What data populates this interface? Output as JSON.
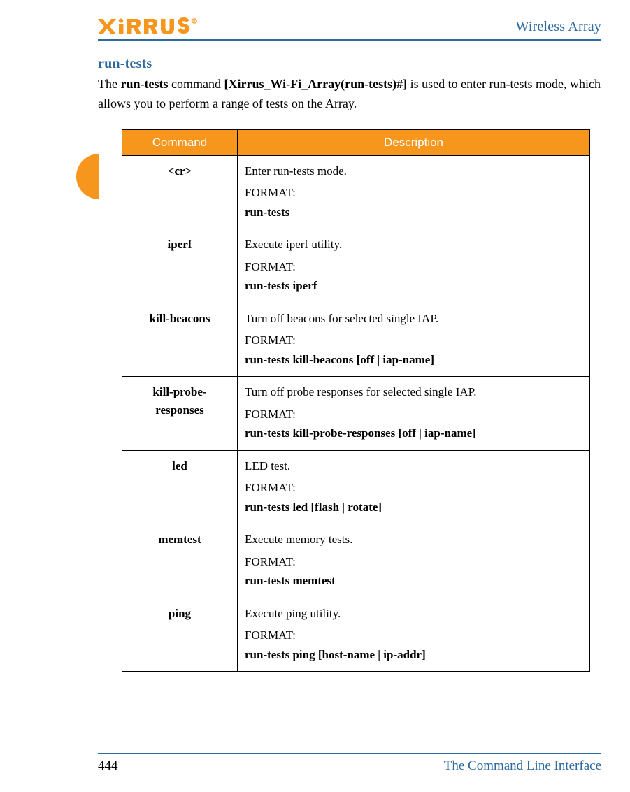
{
  "header": {
    "logo_text": "XIRRUS",
    "logo_color": "#f7961d",
    "right": "Wireless Array",
    "rule_color": "#2c6aa0"
  },
  "section": {
    "title": "run-tests",
    "title_color": "#2c6aa0"
  },
  "intro": {
    "pre": "The ",
    "cmd": "run-tests",
    "mid": " command ",
    "prompt": "[Xirrus_Wi-Fi_Array(run-tests)#]",
    "post": " is used to enter run-tests mode, which allows you to perform a range of tests on the Array."
  },
  "table": {
    "header_bg": "#f7961d",
    "header_fg": "#ffffff",
    "col_command": "Command",
    "col_description": "Description",
    "rows": [
      {
        "command": "<cr>",
        "summary": "Enter run-tests mode.",
        "format_label": "FORMAT:",
        "format": "run-tests"
      },
      {
        "command": "iperf",
        "summary": " Execute iperf utility.",
        "format_label": "FORMAT:",
        "format": "run-tests iperf"
      },
      {
        "command": "kill-beacons",
        "summary": "Turn off beacons for selected single IAP.",
        "format_label": "FORMAT:",
        "format": "run-tests kill-beacons [off | iap-name]"
      },
      {
        "command": "kill-probe-responses",
        "summary": " Turn off probe responses for selected single IAP.",
        "format_label": "FORMAT:",
        "format": "run-tests kill-probe-responses [off | iap-name]"
      },
      {
        "command": "led",
        "summary": "LED test.",
        "format_label": "FORMAT:",
        "format": "run-tests led [flash | rotate]"
      },
      {
        "command": "memtest",
        "summary": " Execute memory tests.",
        "format_label": "FORMAT:",
        "format": "run-tests memtest"
      },
      {
        "command": "ping",
        "summary": " Execute ping utility.",
        "format_label": "FORMAT:",
        "format": "run-tests ping [host-name | ip-addr]"
      }
    ]
  },
  "tab": {
    "bg": "#f7961d"
  },
  "footer": {
    "page": "444",
    "right": "The Command Line Interface",
    "rule_color": "#2c6aa0",
    "right_color": "#2c6aa0"
  }
}
